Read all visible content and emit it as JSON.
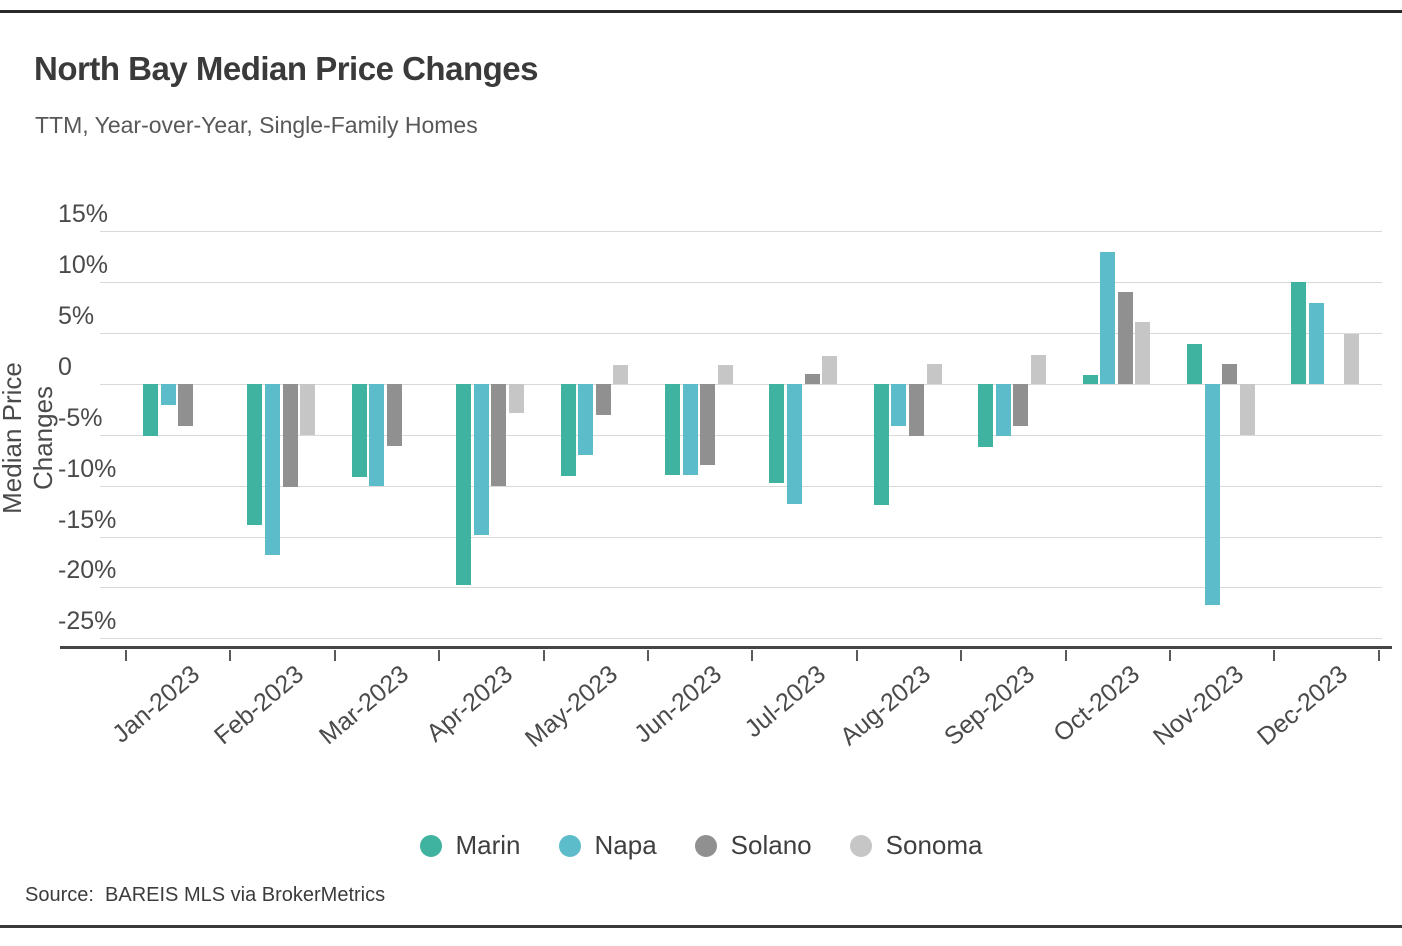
{
  "page": {
    "title": "North Bay Median Price Changes",
    "subtitle": "TTM, Year-over-Year, Single-Family Homes",
    "source": "Source:  BAREIS MLS via BrokerMetrics"
  },
  "chart_data": {
    "type": "bar",
    "title": "North Bay Median Price Changes",
    "subtitle": "TTM, Year-over-Year, Single-Family Homes",
    "xlabel": "",
    "ylabel": "Median Price Changes",
    "categories": [
      "Jan-2023",
      "Feb-2023",
      "Mar-2023",
      "Apr-2023",
      "May-2023",
      "Jun-2023",
      "Jul-2023",
      "Aug-2023",
      "Sep-2023",
      "Oct-2023",
      "Nov-2023",
      "Dec-2023"
    ],
    "y_ticks": [
      "15%",
      "10%",
      "5%",
      "0",
      "-5%",
      "-10%",
      "-15%",
      "-20%",
      "-25%"
    ],
    "ylim": [
      -27,
      15
    ],
    "unit": "percent",
    "grid": "horizontal",
    "legend_position": "bottom",
    "series": [
      {
        "name": "Marin",
        "color": "#3fb3a0",
        "values": [
          -5.1,
          -13.9,
          -9.1,
          -19.8,
          -9.0,
          -8.9,
          -9.7,
          -11.9,
          -6.2,
          0.9,
          3.9,
          10.0
        ]
      },
      {
        "name": "Napa",
        "color": "#5cbcca",
        "values": [
          -2.1,
          -16.8,
          -10.0,
          -14.8,
          -7.0,
          -8.9,
          -11.8,
          -4.1,
          -5.1,
          13.0,
          -21.7,
          8.0
        ]
      },
      {
        "name": "Solano",
        "color": "#909090",
        "values": [
          -4.1,
          -10.1,
          -6.1,
          -10.0,
          -3.0,
          -8.0,
          1.0,
          -5.1,
          -4.1,
          9.0,
          2.0,
          null
        ]
      },
      {
        "name": "Sonoma",
        "color": "#c6c6c6",
        "values": [
          null,
          -5.0,
          null,
          -2.9,
          1.9,
          1.9,
          2.8,
          2.0,
          2.9,
          6.1,
          -5.0,
          4.9
        ]
      }
    ]
  }
}
